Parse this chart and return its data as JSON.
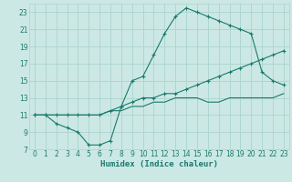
{
  "xlabel": "Humidex (Indice chaleur)",
  "bg_color": "#cce8e4",
  "grid_color": "#aad4ce",
  "line_color": "#1a7a6e",
  "xlim": [
    -0.5,
    23.5
  ],
  "ylim": [
    7,
    24
  ],
  "xticks": [
    0,
    1,
    2,
    3,
    4,
    5,
    6,
    7,
    8,
    9,
    10,
    11,
    12,
    13,
    14,
    15,
    16,
    17,
    18,
    19,
    20,
    21,
    22,
    23
  ],
  "yticks": [
    7,
    9,
    11,
    13,
    15,
    17,
    19,
    21,
    23
  ],
  "line1_x": [
    0,
    1,
    2,
    3,
    4,
    5,
    6,
    7,
    8,
    9,
    10,
    11,
    12,
    13,
    14,
    15,
    16,
    17,
    18,
    19,
    20,
    21,
    22,
    23
  ],
  "line1_y": [
    11,
    11,
    10,
    9.5,
    9,
    7.5,
    7.5,
    8,
    12,
    15,
    15.5,
    18,
    20.5,
    22.5,
    23.5,
    23,
    22.5,
    22,
    21.5,
    21,
    20.5,
    16,
    15,
    14.5
  ],
  "line2_x": [
    0,
    1,
    2,
    3,
    4,
    5,
    6,
    7,
    8,
    9,
    10,
    11,
    12,
    13,
    14,
    15,
    16,
    17,
    18,
    19,
    20,
    21,
    22,
    23
  ],
  "line2_y": [
    11,
    11,
    11,
    11,
    11,
    11,
    11,
    11.5,
    12,
    12.5,
    13,
    13,
    13.5,
    13.5,
    14,
    14.5,
    15,
    15.5,
    16,
    16.5,
    17,
    17.5,
    18,
    18.5
  ],
  "line3_x": [
    0,
    1,
    2,
    3,
    4,
    5,
    6,
    7,
    8,
    9,
    10,
    11,
    12,
    13,
    14,
    15,
    16,
    17,
    18,
    19,
    20,
    21,
    22,
    23
  ],
  "line3_y": [
    11,
    11,
    11,
    11,
    11,
    11,
    11,
    11.5,
    11.5,
    12,
    12,
    12.5,
    12.5,
    13,
    13,
    13,
    12.5,
    12.5,
    13,
    13,
    13,
    13,
    13,
    13.5
  ],
  "tick_fontsize": 5.5,
  "xlabel_fontsize": 6.5,
  "lw": 0.8,
  "ms": 2.5
}
